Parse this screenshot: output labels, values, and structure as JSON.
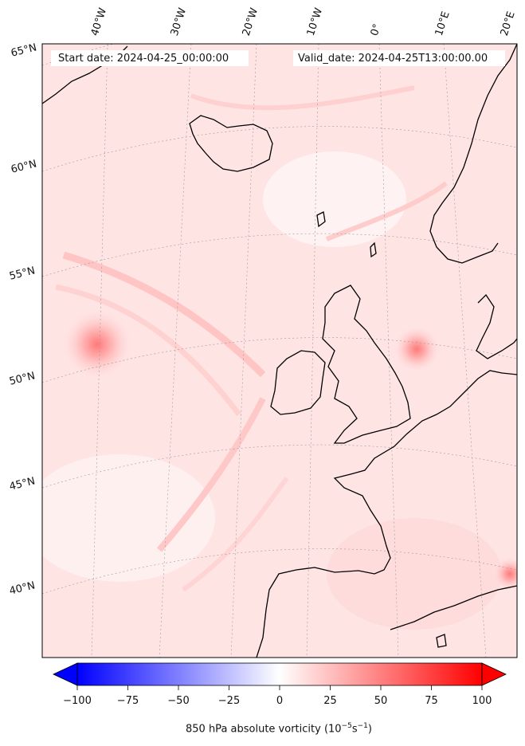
{
  "map": {
    "start_date": "Start date: 2024-04-25_00:00:00",
    "valid_date": "Valid_date: 2024-04-25T13:00:00.00",
    "lon_labels": [
      "40°W",
      "30°W",
      "20°W",
      "10°W",
      "0°",
      "10°E",
      "20°E"
    ],
    "lat_labels": [
      "65°N",
      "60°N",
      "55°N",
      "50°N",
      "45°N",
      "40°N"
    ],
    "field_colors": {
      "low": "#ffe8e8",
      "mid": "#ffcaca",
      "high": "#ff8a8a",
      "coast": "#000000"
    }
  },
  "colorbar": {
    "ticks": [
      "−100",
      "−75",
      "−50",
      "−25",
      "0",
      "25",
      "50",
      "75",
      "100"
    ],
    "tick_values": [
      -100,
      -75,
      -50,
      -25,
      0,
      25,
      50,
      75,
      100
    ],
    "range": [
      -100,
      100
    ],
    "low_color": "#0000ff",
    "mid_color": "#ffffff",
    "high_color": "#ff0000",
    "label": "850 hPa absolute vorticity (10",
    "label_unit_exp1": "−5",
    "label_unit_mid": "s",
    "label_unit_exp2": "−1",
    "label_close": ")"
  }
}
